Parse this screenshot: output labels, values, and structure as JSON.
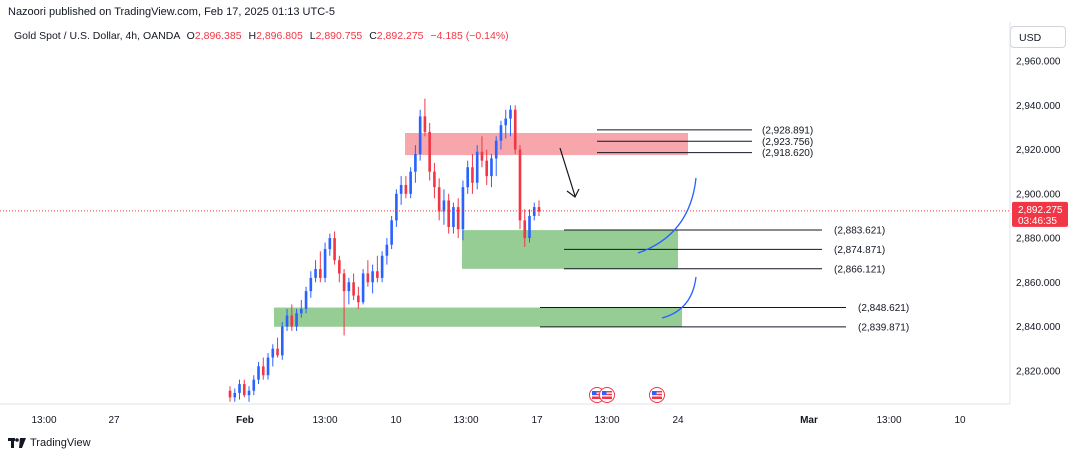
{
  "header": {
    "publisher": "Nazoori published on TradingView.com, Feb 17, 2025 01:13 UTC-5",
    "symbol": "Gold Spot / U.S. Dollar, 4h, OANDA",
    "o_label": "O",
    "o_value": "2,896.385",
    "h_label": "H",
    "h_value": "2,896.805",
    "l_label": "L",
    "l_value": "2,890.755",
    "c_label": "C",
    "c_value": "2,892.275",
    "change": "−4.185 (−0.14%)"
  },
  "currency_button": "USD",
  "footer": {
    "brand": "TradingView"
  },
  "colors": {
    "up": "#2962ff",
    "down": "#f23645",
    "supply_zone": "#f7a1a8",
    "demand_zone": "#8fca8f",
    "current_price": "#f23645"
  },
  "chart_data": {
    "type": "candlestick",
    "y_axis": {
      "min": 2805,
      "max": 2965,
      "ticks": [
        2960,
        2940,
        2920,
        2900,
        2880,
        2860,
        2840,
        2820
      ],
      "tick_labels": [
        "2,960.000",
        "2,940.000",
        "2,920.000",
        "2,900.000",
        "2,880.000",
        "2,860.000",
        "2,840.000",
        "2,820.000"
      ]
    },
    "x_axis": {
      "tick_labels": [
        "13:00",
        "27",
        "Feb",
        "13:00",
        "10",
        "13:00",
        "17",
        "13:00",
        "24",
        "Mar",
        "13:00",
        "10"
      ],
      "bold_labels": [
        "Feb",
        "Mar"
      ]
    },
    "current_price": {
      "value": 2892.275,
      "label": "2,892.275",
      "countdown": "03:46:35"
    },
    "candles": [
      [
        2811,
        2813,
        2806,
        2808
      ],
      [
        2808,
        2812,
        2806,
        2810
      ],
      [
        2810,
        2816,
        2807,
        2814
      ],
      [
        2814,
        2816,
        2808,
        2809
      ],
      [
        2809,
        2813,
        2806,
        2811
      ],
      [
        2811,
        2818,
        2809,
        2816
      ],
      [
        2816,
        2824,
        2814,
        2822
      ],
      [
        2822,
        2826,
        2816,
        2818
      ],
      [
        2818,
        2828,
        2816,
        2826
      ],
      [
        2826,
        2832,
        2822,
        2830
      ],
      [
        2830,
        2835,
        2826,
        2827
      ],
      [
        2827,
        2842,
        2825,
        2840
      ],
      [
        2840,
        2848,
        2838,
        2845
      ],
      [
        2845,
        2850,
        2838,
        2840
      ],
      [
        2840,
        2848,
        2838,
        2846
      ],
      [
        2846,
        2852,
        2844,
        2848
      ],
      [
        2848,
        2858,
        2846,
        2856
      ],
      [
        2856,
        2865,
        2853,
        2862
      ],
      [
        2862,
        2870,
        2860,
        2866
      ],
      [
        2866,
        2874,
        2860,
        2862
      ],
      [
        2862,
        2878,
        2860,
        2875
      ],
      [
        2875,
        2882,
        2872,
        2880
      ],
      [
        2880,
        2883,
        2868,
        2870
      ],
      [
        2870,
        2872,
        2860,
        2864
      ],
      [
        2864,
        2866,
        2836,
        2856
      ],
      [
        2856,
        2862,
        2850,
        2860
      ],
      [
        2860,
        2864,
        2852,
        2854
      ],
      [
        2854,
        2858,
        2848,
        2851
      ],
      [
        2851,
        2866,
        2850,
        2864
      ],
      [
        2864,
        2870,
        2858,
        2860
      ],
      [
        2860,
        2868,
        2855,
        2865
      ],
      [
        2865,
        2872,
        2860,
        2862
      ],
      [
        2862,
        2874,
        2860,
        2872
      ],
      [
        2872,
        2880,
        2868,
        2877
      ],
      [
        2877,
        2890,
        2875,
        2888
      ],
      [
        2888,
        2902,
        2885,
        2900
      ],
      [
        2900,
        2908,
        2895,
        2904
      ],
      [
        2904,
        2908,
        2898,
        2900
      ],
      [
        2900,
        2912,
        2898,
        2910
      ],
      [
        2910,
        2922,
        2905,
        2918
      ],
      [
        2918,
        2938,
        2915,
        2935
      ],
      [
        2935,
        2943,
        2926,
        2928
      ],
      [
        2928,
        2932,
        2906,
        2910
      ],
      [
        2910,
        2914,
        2898,
        2903
      ],
      [
        2903,
        2907,
        2888,
        2892
      ],
      [
        2892,
        2902,
        2886,
        2897
      ],
      [
        2897,
        2900,
        2882,
        2885
      ],
      [
        2885,
        2896,
        2882,
        2894
      ],
      [
        2894,
        2898,
        2880,
        2884
      ],
      [
        2884,
        2906,
        2879,
        2903
      ],
      [
        2903,
        2915,
        2900,
        2912
      ],
      [
        2912,
        2918,
        2900,
        2905
      ],
      [
        2905,
        2922,
        2902,
        2919
      ],
      [
        2919,
        2926,
        2912,
        2915
      ],
      [
        2915,
        2920,
        2904,
        2908
      ],
      [
        2908,
        2918,
        2903,
        2916
      ],
      [
        2916,
        2926,
        2908,
        2924
      ],
      [
        2924,
        2933,
        2920,
        2931
      ],
      [
        2931,
        2938,
        2925,
        2934
      ],
      [
        2934,
        2940,
        2926,
        2938
      ],
      [
        2938,
        2940,
        2918,
        2920
      ],
      [
        2920,
        2922,
        2884,
        2888
      ],
      [
        2888,
        2893,
        2876,
        2880
      ],
      [
        2880,
        2893,
        2878,
        2890
      ],
      [
        2890,
        2896,
        2888,
        2894
      ],
      [
        2894,
        2897,
        2890,
        2892
      ]
    ],
    "zones": [
      {
        "name": "supply",
        "top": 2927.5,
        "bottom": 2917.5
      },
      {
        "name": "demand",
        "top": 2883.6,
        "bottom": 2866.1
      },
      {
        "name": "demand-low",
        "top": 2848.6,
        "bottom": 2839.9
      }
    ],
    "levels": [
      {
        "value": 2928.891,
        "label": "(2,928.891)"
      },
      {
        "value": 2923.756,
        "label": "(2,923.756)"
      },
      {
        "value": 2918.62,
        "label": "(2,918.620)"
      },
      {
        "value": 2883.621,
        "label": "(2,883.621)"
      },
      {
        "value": 2874.871,
        "label": "(2,874.871)"
      },
      {
        "value": 2866.121,
        "label": "(2,866.121)"
      },
      {
        "value": 2848.621,
        "label": "(2,848.621)"
      },
      {
        "value": 2839.871,
        "label": "(2,839.871)"
      }
    ],
    "events": [
      "us-flag-icon",
      "us-flag-icon",
      "us-flag-icon"
    ]
  }
}
